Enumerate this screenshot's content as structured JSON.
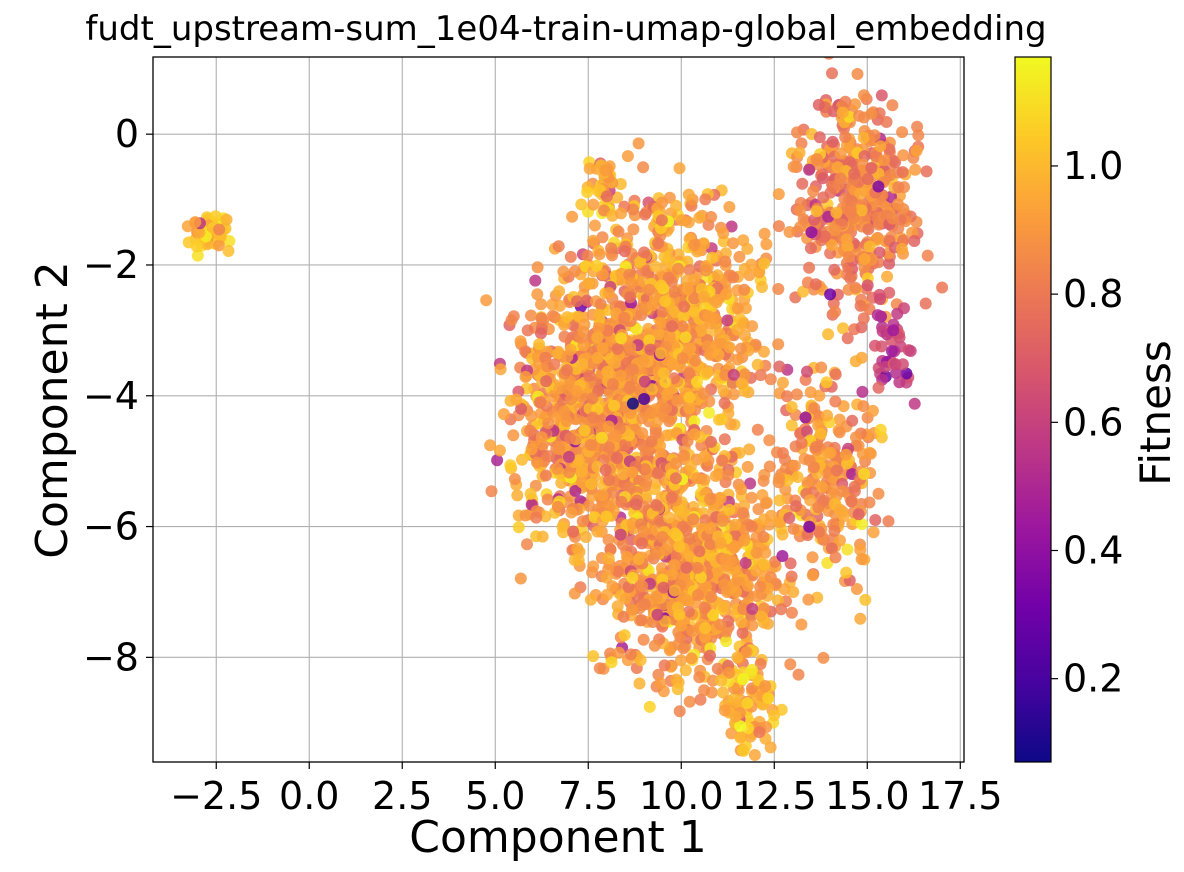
{
  "chart_data": {
    "type": "scatter",
    "title": "fudt_upstream-sum_1e04-train-umap-global_embedding",
    "xlabel": "Component 1",
    "ylabel": "Component 2",
    "xlim": [
      -4.2,
      17.6
    ],
    "ylim": [
      -9.6,
      1.18
    ],
    "x_ticks": [
      -2.5,
      0.0,
      2.5,
      5.0,
      7.5,
      10.0,
      12.5,
      15.0,
      17.5
    ],
    "x_tick_labels": [
      "−2.5",
      "0.0",
      "2.5",
      "5.0",
      "7.5",
      "10.0",
      "12.5",
      "15.0",
      "17.5"
    ],
    "y_ticks": [
      0,
      -2,
      -4,
      -6,
      -8
    ],
    "y_tick_labels": [
      "0",
      "−2",
      "−4",
      "−6",
      "−8"
    ],
    "grid": true,
    "colorbar": {
      "label": "Fitness",
      "colormap": "plasma",
      "range": [
        0.07,
        1.17
      ],
      "ticks": [
        0.2,
        0.4,
        0.6,
        0.8,
        1.0
      ],
      "tick_labels": [
        "0.2",
        "0.4",
        "0.6",
        "0.8",
        "1.0"
      ]
    },
    "colors": {
      "grid": "#b0b0b0",
      "axis": "#000000",
      "colormap_stops": [
        "#0d0887",
        "#46039f",
        "#7201a8",
        "#9c179e",
        "#bd3786",
        "#d8576b",
        "#ed7953",
        "#fb9f3a",
        "#fdca26",
        "#f0f921"
      ]
    },
    "clusters": [
      {
        "name": "small isolated cluster",
        "center": [
          -2.7,
          -1.5
        ],
        "spread": [
          0.35,
          0.18
        ],
        "count": 60,
        "fitness_mean": 1.02
      },
      {
        "name": "upper-left lobe",
        "center": [
          7.9,
          -0.8
        ],
        "spread": [
          0.3,
          0.35
        ],
        "count": 40,
        "fitness_mean": 0.98
      },
      {
        "name": "main left mass",
        "center": [
          7.6,
          -4.2
        ],
        "spread": [
          1.45,
          1.35
        ],
        "count": 900,
        "fitness_mean": 0.9
      },
      {
        "name": "main central mass",
        "center": [
          9.9,
          -2.9
        ],
        "spread": [
          1.5,
          1.3
        ],
        "count": 700,
        "fitness_mean": 0.93
      },
      {
        "name": "main lower mass",
        "center": [
          10.3,
          -6.6
        ],
        "spread": [
          1.6,
          1.1
        ],
        "count": 800,
        "fitness_mean": 0.92
      },
      {
        "name": "bottom tail",
        "center": [
          11.8,
          -8.7
        ],
        "spread": [
          0.55,
          0.45
        ],
        "count": 80,
        "fitness_mean": 0.98
      },
      {
        "name": "right middle lobe",
        "center": [
          13.9,
          -5.2
        ],
        "spread": [
          1.0,
          1.1
        ],
        "count": 250,
        "fitness_mean": 0.9
      },
      {
        "name": "upper right mass",
        "center": [
          14.7,
          -1.0
        ],
        "spread": [
          1.05,
          1.05
        ],
        "count": 420,
        "fitness_mean": 0.85
      },
      {
        "name": "upper right tail",
        "center": [
          15.7,
          -3.3
        ],
        "spread": [
          0.35,
          0.6
        ],
        "count": 40,
        "fitness_mean": 0.62
      }
    ],
    "low_fitness_points": [
      [
        8.7,
        -4.12,
        0.07
      ],
      [
        9.0,
        -4.05,
        0.2
      ],
      [
        14.0,
        -2.45,
        0.3
      ],
      [
        15.3,
        -0.8,
        0.35
      ],
      [
        15.7,
        -3.0,
        0.45
      ],
      [
        13.5,
        -1.5,
        0.4
      ]
    ]
  }
}
